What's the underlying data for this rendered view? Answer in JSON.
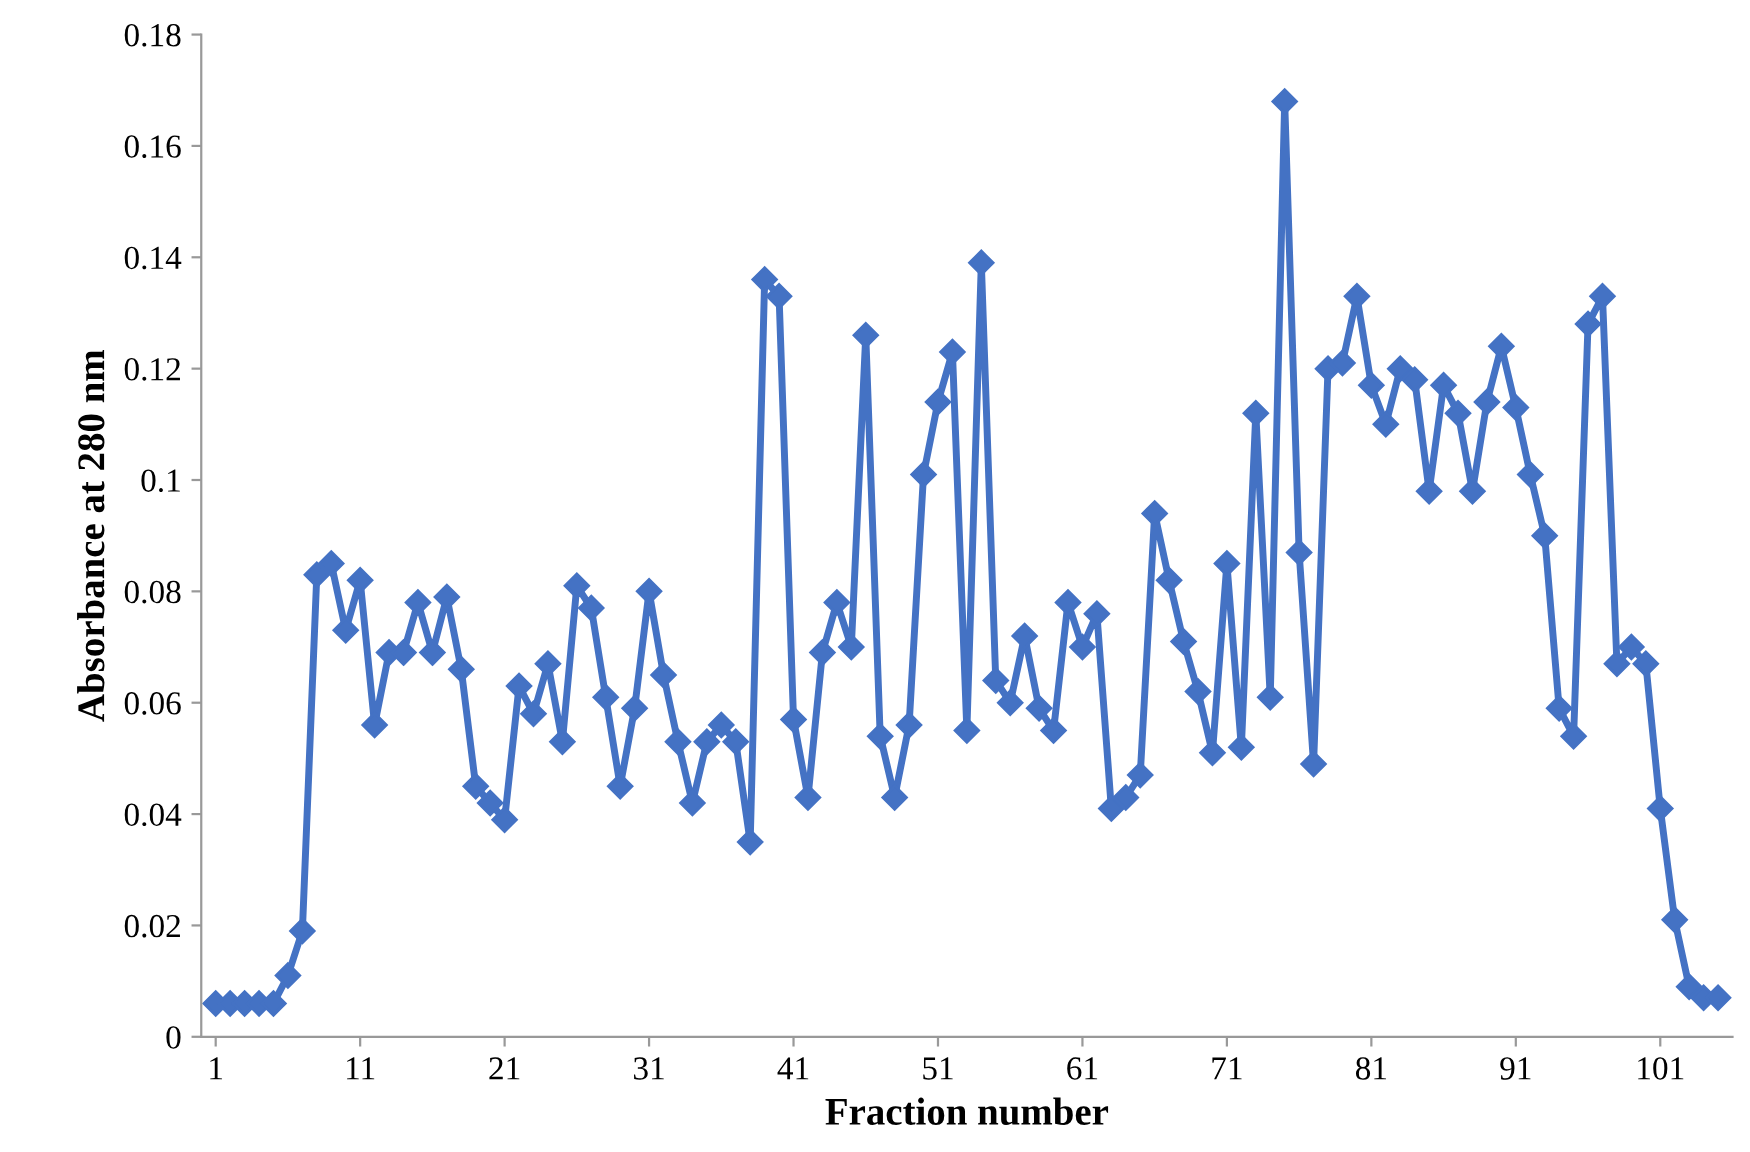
{
  "chart_data": {
    "type": "line",
    "xlabel": "Fraction number",
    "ylabel": "Absorbance at 280 nm",
    "x": [
      1,
      2,
      3,
      4,
      5,
      6,
      7,
      8,
      9,
      10,
      11,
      12,
      13,
      14,
      15,
      16,
      17,
      18,
      19,
      20,
      21,
      22,
      23,
      24,
      25,
      26,
      27,
      28,
      29,
      30,
      31,
      32,
      33,
      34,
      35,
      36,
      37,
      38,
      39,
      40,
      41,
      42,
      43,
      44,
      45,
      46,
      47,
      48,
      49,
      50,
      51,
      52,
      53,
      54,
      55,
      56,
      57,
      58,
      59,
      60,
      61,
      62,
      63,
      64,
      65,
      66,
      67,
      68,
      69,
      70,
      71,
      72,
      73,
      74,
      75,
      76,
      77,
      78,
      79,
      80,
      81,
      82,
      83,
      84,
      85,
      86,
      87,
      88,
      89,
      90,
      91,
      92,
      93,
      94,
      95,
      96,
      97,
      98,
      99,
      100,
      101,
      102,
      103,
      104,
      105
    ],
    "series": [
      {
        "color": "#4472c4",
        "values": [
          0.006,
          0.006,
          0.006,
          0.006,
          0.006,
          0.011,
          0.019,
          0.083,
          0.085,
          0.073,
          0.082,
          0.056,
          0.069,
          0.069,
          0.078,
          0.069,
          0.079,
          0.066,
          0.045,
          0.042,
          0.039,
          0.063,
          0.058,
          0.067,
          0.053,
          0.081,
          0.077,
          0.061,
          0.045,
          0.059,
          0.08,
          0.065,
          0.053,
          0.042,
          0.053,
          0.056,
          0.053,
          0.035,
          0.136,
          0.133,
          0.057,
          0.043,
          0.069,
          0.078,
          0.07,
          0.126,
          0.054,
          0.043,
          0.056,
          0.101,
          0.114,
          0.123,
          0.055,
          0.139,
          0.064,
          0.06,
          0.072,
          0.059,
          0.055,
          0.078,
          0.07,
          0.076,
          0.041,
          0.043,
          0.047,
          0.094,
          0.082,
          0.071,
          0.062,
          0.051,
          0.085,
          0.052,
          0.112,
          0.061,
          0.168,
          0.087,
          0.049,
          0.12,
          0.121,
          0.133,
          0.117,
          0.11,
          0.12,
          0.118,
          0.098,
          0.117,
          0.112,
          0.098,
          0.114,
          0.124,
          0.113,
          0.101,
          0.09,
          0.059,
          0.054,
          0.128,
          0.133,
          0.067,
          0.07,
          0.067,
          0.041,
          0.021,
          0.009,
          0.007,
          0.007
        ]
      }
    ],
    "xlim": [
      0,
      106
    ],
    "xticks": [
      1,
      11,
      21,
      31,
      41,
      51,
      61,
      71,
      81,
      91,
      101
    ],
    "ylim": [
      0,
      0.18
    ],
    "yticks": [
      0,
      0.02,
      0.04,
      0.06,
      0.08,
      0.1,
      0.12,
      0.14,
      0.16,
      0.18
    ],
    "marker": "diamond",
    "line_style": "solid",
    "grid": false,
    "legend": false
  }
}
